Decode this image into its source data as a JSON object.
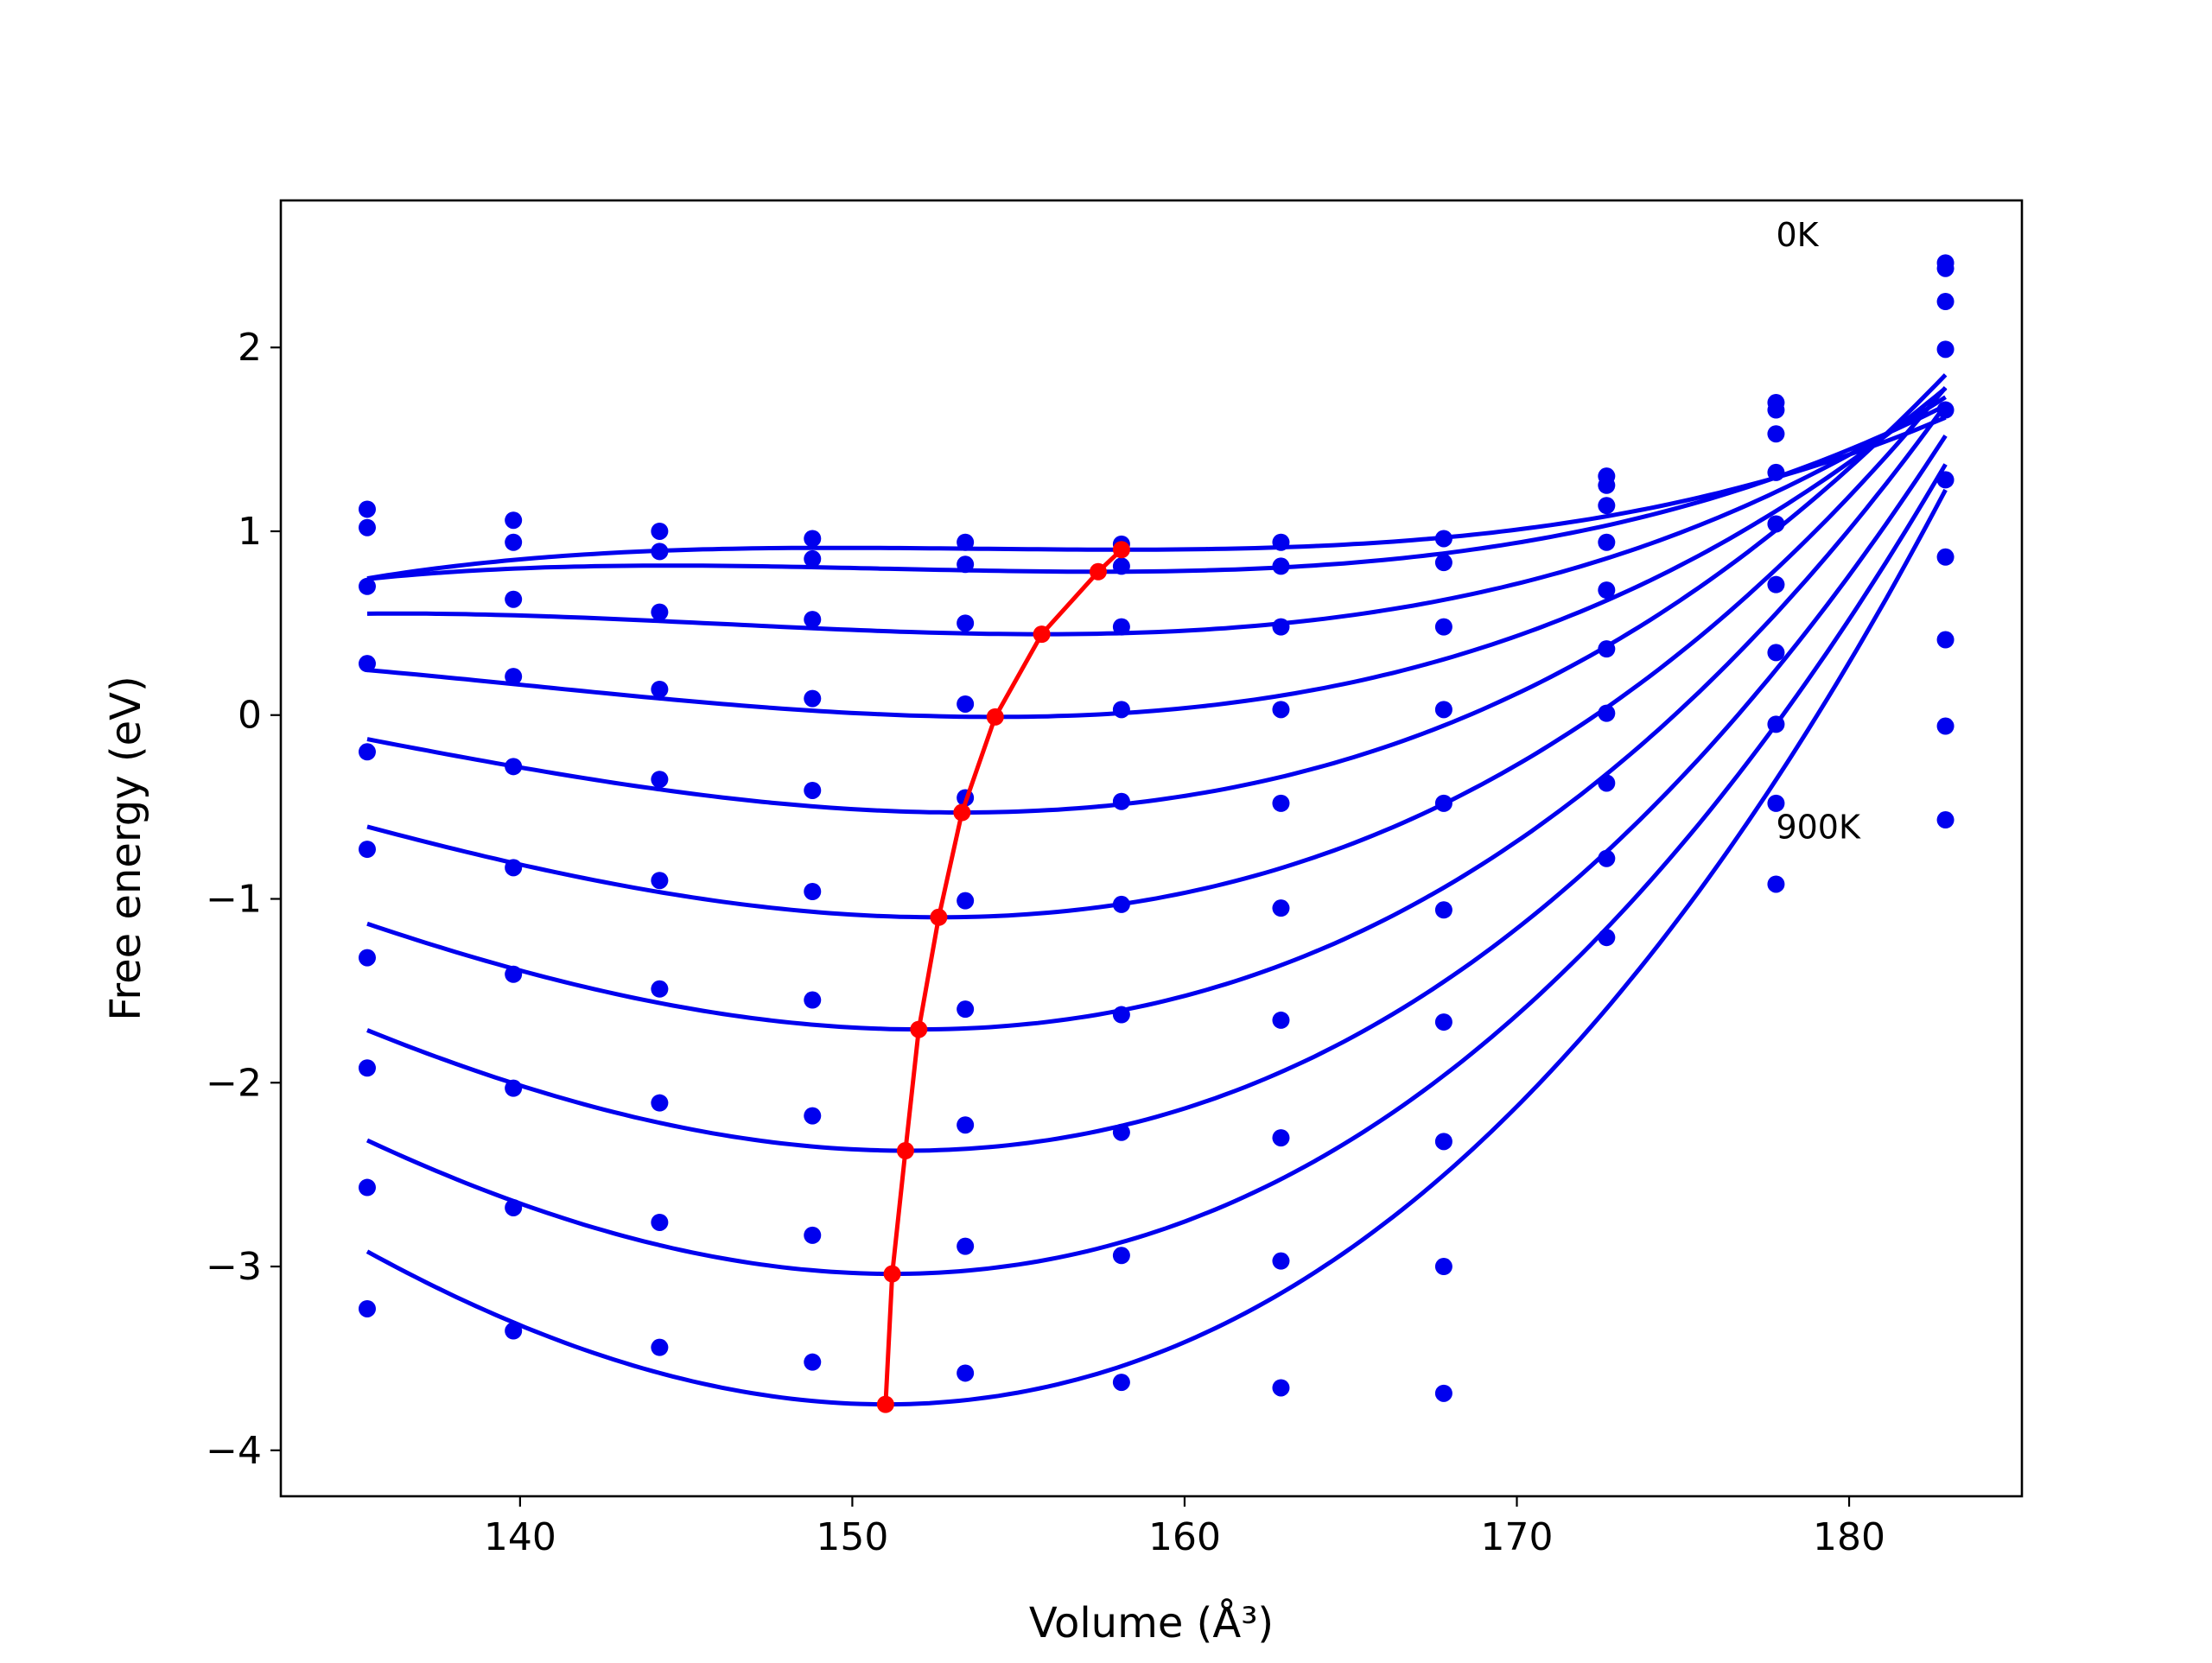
{
  "chart_data": {
    "type": "scatter",
    "xlabel": "Volume (Å³)",
    "ylabel": "Free energy (eV)",
    "xlim": [
      132.8,
      185.2
    ],
    "ylim": [
      -4.25,
      2.8
    ],
    "x_ticks": [
      140,
      150,
      160,
      170,
      180
    ],
    "y_ticks": [
      -4,
      -3,
      -2,
      -1,
      0,
      1,
      2
    ],
    "x_tick_labels": [
      "140",
      "150",
      "160",
      "170",
      "180"
    ],
    "y_tick_labels": [
      "−4",
      "−3",
      "−2",
      "−1",
      "0",
      "1",
      "2"
    ],
    "grid": false,
    "annotations": [
      {
        "text": "0K",
        "x": 177.8,
        "y": 2.55
      },
      {
        "text": "900K",
        "x": 177.8,
        "y": -0.67
      }
    ],
    "colors": {
      "data": "#0000ee",
      "minimum_path": "#ff0000",
      "frame": "#000000"
    },
    "volumes": [
      135.4,
      139.8,
      144.2,
      148.8,
      153.4,
      158.1,
      162.9,
      167.8,
      172.7,
      177.8,
      182.9
    ],
    "series": [
      {
        "fit": {
          "v0": 158.1,
          "e0": 0.9,
          "a": 0.0004,
          "b": 3.1e-05
        },
        "values": [
          1.12,
          1.06,
          1.0,
          0.96,
          0.94,
          0.93,
          0.94,
          0.96,
          1.3,
          1.7,
          2.46
        ]
      },
      {
        "fit": {
          "v0": 157.4,
          "e0": 0.78,
          "a": 0.0006,
          "b": 3.1e-05
        },
        "values": [
          1.02,
          0.94,
          0.89,
          0.85,
          0.82,
          0.81,
          0.81,
          0.83,
          1.25,
          1.66,
          2.43
        ]
      },
      {
        "fit": {
          "v0": 155.7,
          "e0": 0.44,
          "a": 0.0009,
          "b": 3.1e-05
        },
        "values": [
          0.7,
          0.63,
          0.56,
          0.52,
          0.5,
          0.48,
          0.48,
          0.48,
          1.14,
          1.53,
          2.25
        ]
      },
      {
        "fit": {
          "v0": 154.3,
          "e0": -0.01,
          "a": 0.0013,
          "b": 3.1e-05
        },
        "values": [
          0.28,
          0.21,
          0.14,
          0.09,
          0.06,
          0.03,
          0.03,
          0.03,
          0.94,
          1.32,
          1.99
        ]
      },
      {
        "fit": {
          "v0": 153.3,
          "e0": -0.53,
          "a": 0.0018,
          "b": 3.1e-05
        },
        "values": [
          -0.2,
          -0.28,
          -0.35,
          -0.41,
          -0.45,
          -0.47,
          -0.48,
          -0.48,
          0.68,
          1.04,
          1.66
        ]
      },
      {
        "fit": {
          "v0": 152.6,
          "e0": -1.1,
          "a": 0.0022,
          "b": 3.1e-05
        },
        "values": [
          -0.73,
          -0.83,
          -0.9,
          -0.96,
          -1.01,
          -1.03,
          -1.05,
          -1.06,
          0.36,
          0.71,
          1.28
        ]
      },
      {
        "fit": {
          "v0": 152.0,
          "e0": -1.71,
          "a": 0.0026,
          "b": 3.1e-05
        },
        "values": [
          -1.32,
          -1.41,
          -1.49,
          -1.55,
          -1.6,
          -1.63,
          -1.66,
          -1.67,
          0.01,
          0.34,
          0.86
        ]
      },
      {
        "fit": {
          "v0": 151.6,
          "e0": -2.37,
          "a": 0.003,
          "b": 3.1e-05
        },
        "values": [
          -1.92,
          -2.03,
          -2.11,
          -2.18,
          -2.23,
          -2.27,
          -2.3,
          -2.32,
          -0.37,
          -0.05,
          0.41
        ]
      },
      {
        "fit": {
          "v0": 151.2,
          "e0": -3.04,
          "a": 0.0034,
          "b": 3.1e-05
        },
        "values": [
          -2.57,
          -2.68,
          -2.76,
          -2.83,
          -2.89,
          -2.94,
          -2.97,
          -3.0,
          -0.78,
          -0.48,
          -0.06
        ]
      },
      {
        "fit": {
          "v0": 151.0,
          "e0": -3.75,
          "a": 0.0039,
          "b": 3.1e-05
        },
        "values": [
          -3.23,
          -3.35,
          -3.44,
          -3.52,
          -3.58,
          -3.63,
          -3.66,
          -3.69,
          -1.21,
          -0.92,
          -0.57
        ]
      }
    ],
    "minimum_path": {
      "x": [
        158.1,
        157.4,
        155.7,
        154.3,
        153.3,
        152.6,
        152.0,
        151.6,
        151.2,
        151.0
      ],
      "y": [
        0.9,
        0.78,
        0.44,
        -0.01,
        -0.53,
        -1.1,
        -1.71,
        -2.37,
        -3.04,
        -3.75
      ]
    }
  }
}
